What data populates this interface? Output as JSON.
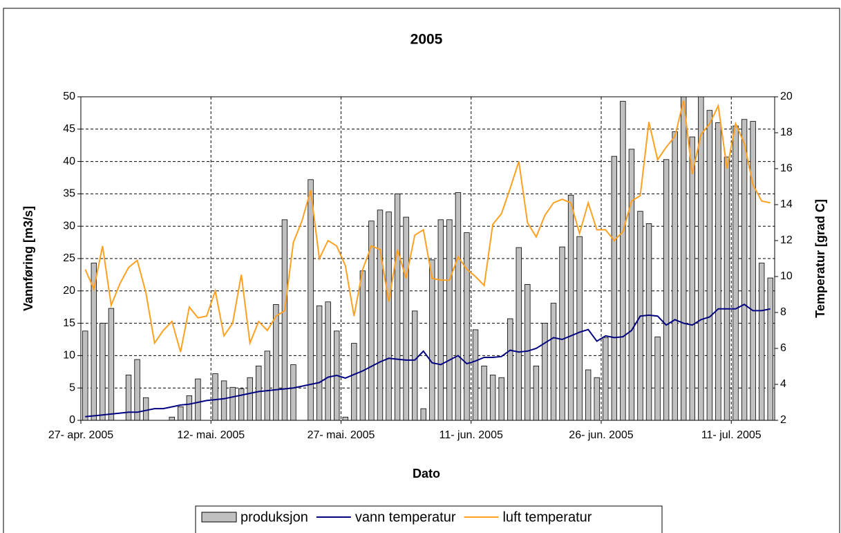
{
  "chart_data": {
    "type": "bar",
    "title": "2005",
    "x_label": "Dato",
    "y_label": "Vannføring [m3/s]",
    "y2_label": "Temperatur [grad C]",
    "categories": [
      "27- apr. 2005",
      null,
      null,
      null,
      null,
      null,
      null,
      null,
      null,
      null,
      null,
      null,
      null,
      null,
      null,
      "12- mai. 2005",
      null,
      null,
      null,
      null,
      null,
      null,
      null,
      null,
      null,
      null,
      null,
      null,
      null,
      null,
      "27- mai. 2005",
      null,
      null,
      null,
      null,
      null,
      null,
      null,
      null,
      null,
      null,
      null,
      null,
      null,
      null,
      "11- jun. 2005",
      null,
      null,
      null,
      null,
      null,
      null,
      null,
      null,
      null,
      null,
      null,
      null,
      null,
      null,
      "26- jun. 2005",
      null,
      null,
      null,
      null,
      null,
      null,
      null,
      null,
      null,
      null,
      null,
      null,
      null,
      null,
      "11- jul. 2005",
      null,
      null,
      null,
      null
    ],
    "series": [
      {
        "name": "produksjon",
        "type": "bar",
        "axis": "y",
        "color": "#c0c0c0",
        "values": [
          13.8,
          24.3,
          15.0,
          17.3,
          0,
          7.0,
          9.4,
          3.5,
          0,
          0,
          0.5,
          2.1,
          3.8,
          6.4,
          0,
          7.2,
          6.1,
          5.1,
          4.9,
          6.6,
          8.4,
          10.7,
          17.9,
          31.0,
          8.6,
          0,
          37.2,
          17.7,
          18.3,
          13.8,
          0.5,
          11.9,
          23.1,
          30.8,
          32.5,
          32.2,
          35.0,
          31.4,
          16.9,
          1.8,
          24.8,
          31.0,
          31.0,
          35.2,
          29.0,
          14.0,
          8.4,
          7.0,
          6.6,
          15.7,
          26.7,
          21.0,
          8.4,
          15.0,
          18.1,
          26.8,
          34.8,
          28.4,
          7.8,
          6.6,
          12.8,
          40.8,
          49.3,
          41.9,
          32.3,
          30.4,
          12.9,
          40.3,
          44.6,
          50,
          43.8,
          50,
          47.9,
          46.0,
          40.7,
          45.5,
          46.5,
          46.2,
          24.3,
          22.0
        ]
      },
      {
        "name": "vann temperatur",
        "type": "line",
        "axis": "y2",
        "color": "#000080",
        "values": [
          2.2,
          2.25,
          2.3,
          2.35,
          2.4,
          2.45,
          2.45,
          2.55,
          2.65,
          2.65,
          2.75,
          2.85,
          2.9,
          3.0,
          3.1,
          3.15,
          3.2,
          3.3,
          3.4,
          3.5,
          3.6,
          3.65,
          3.7,
          3.75,
          3.8,
          3.9,
          4.0,
          4.1,
          4.4,
          4.5,
          4.35,
          4.55,
          4.75,
          5.0,
          5.25,
          5.45,
          5.4,
          5.35,
          5.35,
          5.85,
          5.2,
          5.1,
          5.35,
          5.6,
          5.15,
          5.3,
          5.5,
          5.5,
          5.55,
          5.9,
          5.8,
          5.85,
          6.0,
          6.3,
          6.6,
          6.5,
          6.7,
          6.9,
          7.05,
          6.4,
          6.7,
          6.6,
          6.65,
          7.0,
          7.8,
          7.85,
          7.8,
          7.3,
          7.6,
          7.4,
          7.3,
          7.6,
          7.75,
          8.2,
          8.2,
          8.2,
          8.45,
          8.1,
          8.1,
          8.2
        ]
      },
      {
        "name": "luft temperatur",
        "type": "line",
        "axis": "y2",
        "color": "#ffa020",
        "values": [
          10.4,
          9.3,
          11.7,
          8.4,
          9.6,
          10.5,
          10.9,
          9.1,
          6.3,
          7.0,
          7.5,
          5.8,
          8.3,
          7.7,
          7.8,
          9.2,
          6.7,
          7.4,
          10.1,
          6.3,
          7.5,
          7.0,
          7.8,
          8.1,
          11.9,
          13.1,
          14.8,
          11.0,
          12.0,
          11.7,
          10.6,
          7.8,
          10.4,
          11.7,
          11.5,
          8.6,
          11.5,
          9.9,
          12.3,
          12.6,
          9.9,
          9.8,
          9.8,
          11.1,
          10.4,
          10.0,
          9.5,
          12.9,
          13.5,
          14.9,
          16.4,
          13.0,
          12.2,
          13.4,
          14.1,
          14.3,
          14.1,
          12.4,
          14.1,
          12.6,
          12.6,
          12.0,
          12.5,
          14.2,
          14.5,
          18.6,
          16.5,
          17.2,
          17.8,
          19.8,
          15.7,
          17.9,
          18.5,
          19.5,
          16.0,
          18.5,
          17.4,
          15.1,
          14.2,
          14.1
        ]
      }
    ],
    "ylim": [
      0,
      50
    ],
    "yticks": [
      0,
      5,
      10,
      15,
      20,
      25,
      30,
      35,
      40,
      45,
      50
    ],
    "y2lim": [
      2,
      20
    ],
    "y2ticks": [
      2,
      4,
      6,
      8,
      10,
      12,
      14,
      16,
      18,
      20
    ],
    "grid": true,
    "legend": "bottom"
  }
}
